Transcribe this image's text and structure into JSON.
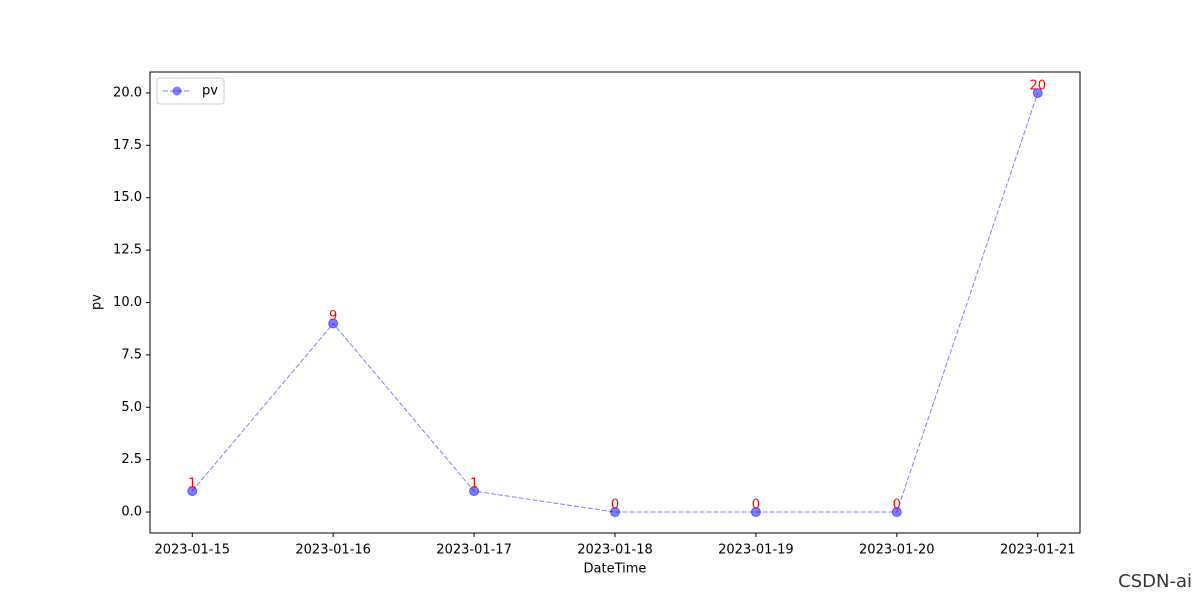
{
  "chart_data": {
    "type": "line",
    "x": [
      "2023-01-15",
      "2023-01-16",
      "2023-01-17",
      "2023-01-18",
      "2023-01-19",
      "2023-01-20",
      "2023-01-21"
    ],
    "series": [
      {
        "name": "pv",
        "color": "#0000ff",
        "values": [
          1,
          9,
          1,
          0,
          0,
          0,
          20
        ]
      }
    ],
    "xlabel": "DateTime",
    "ylabel": "pv",
    "ylim": [
      -1,
      21
    ],
    "yticks": [
      {
        "value": 0,
        "label": "0.0"
      },
      2.5,
      {
        "value": 5,
        "label": "5.0"
      },
      7.5,
      {
        "value": 10,
        "label": "10.0"
      },
      12.5,
      {
        "value": 15,
        "label": "15.0"
      },
      17.5,
      {
        "value": 20,
        "label": "20.0"
      }
    ],
    "legend": "upper left",
    "value_label_color": "red",
    "watermark": "CSDN-ai"
  }
}
